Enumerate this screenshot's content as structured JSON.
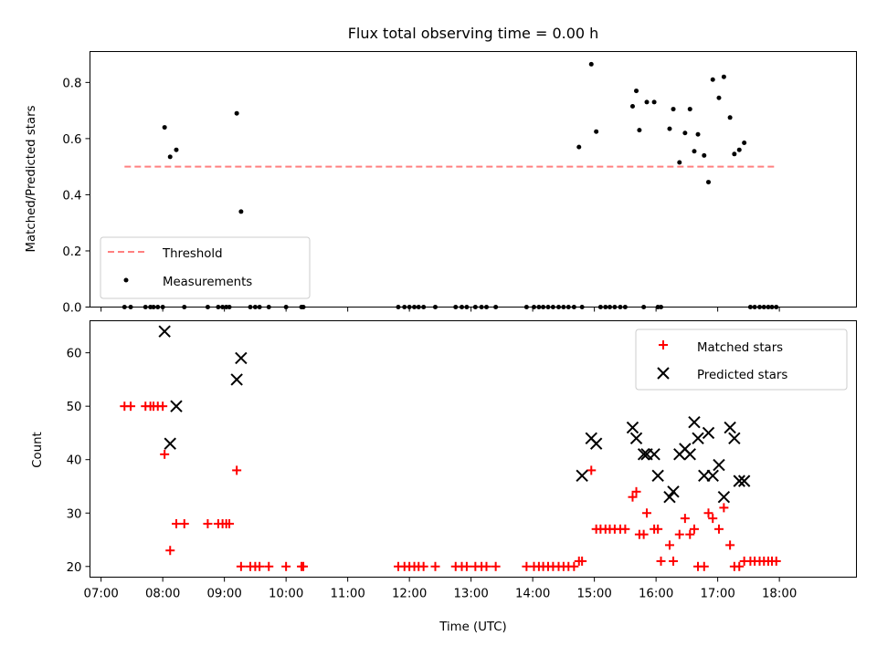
{
  "chart_data": [
    {
      "type": "scatter",
      "title": "Flux total observing time = 0.00 h",
      "xlabel": "",
      "ylabel": "Matched/Predicted stars",
      "ylim": [
        0,
        0.91
      ],
      "yticks": [
        0.0,
        0.2,
        0.4,
        0.6,
        0.8
      ],
      "ytick_labels": [
        "0.0",
        "0.2",
        "0.4",
        "0.6",
        "0.8"
      ],
      "xlim": [
        6.82,
        19.25
      ],
      "grid": false,
      "legend_position": "lower-left",
      "threshold": {
        "name": "Threshold",
        "value": 0.5,
        "x_range": [
          7.38,
          17.92
        ],
        "color": "#ff8080"
      },
      "series": [
        {
          "name": "Measurements",
          "color": "#000000",
          "x": [
            7.38,
            7.48,
            7.72,
            7.8,
            7.85,
            7.92,
            8.0,
            8.03,
            8.12,
            8.22,
            8.35,
            8.73,
            8.9,
            8.97,
            9.03,
            9.08,
            9.2,
            9.27,
            9.42,
            9.5,
            9.57,
            9.72,
            10.0,
            10.25,
            10.28,
            11.82,
            11.92,
            12.0,
            12.08,
            12.15,
            12.23,
            12.42,
            12.75,
            12.85,
            12.93,
            13.07,
            13.17,
            13.25,
            13.4,
            13.9,
            14.02,
            14.1,
            14.17,
            14.25,
            14.33,
            14.42,
            14.5,
            14.58,
            14.67,
            14.75,
            14.8,
            14.95,
            15.03,
            15.1,
            15.18,
            15.25,
            15.33,
            15.42,
            15.5,
            15.62,
            15.68,
            15.73,
            15.8,
            15.85,
            15.97,
            16.03,
            16.08,
            16.22,
            16.28,
            16.38,
            16.47,
            16.55,
            16.62,
            16.68,
            16.78,
            16.85,
            16.92,
            17.02,
            17.1,
            17.2,
            17.27,
            17.35,
            17.43,
            17.53,
            17.6,
            17.68,
            17.75,
            17.82,
            17.88,
            17.95
          ],
          "y": [
            0,
            0,
            0,
            0,
            0,
            0,
            0,
            0.64,
            0.535,
            0.56,
            0,
            0,
            0,
            0,
            0,
            0,
            0.69,
            0.34,
            0,
            0,
            0,
            0,
            0,
            0,
            0,
            0,
            0,
            0,
            0,
            0,
            0,
            0,
            0,
            0,
            0,
            0,
            0,
            0,
            0,
            0,
            0,
            0,
            0,
            0,
            0,
            0,
            0,
            0,
            0,
            0.57,
            0,
            0.865,
            0.625,
            0,
            0,
            0,
            0,
            0,
            0,
            0.715,
            0.77,
            0.63,
            0,
            0.73,
            0.73,
            0,
            0,
            0.635,
            0.705,
            0.515,
            0.62,
            0.705,
            0.555,
            0.615,
            0.54,
            0.445,
            0.81,
            0.745,
            0.82,
            0.675,
            0.545,
            0.56,
            0.585,
            0,
            0,
            0,
            0,
            0,
            0,
            0
          ]
        }
      ]
    },
    {
      "type": "scatter",
      "title": "",
      "xlabel": "Time (UTC)",
      "ylabel": "Count",
      "ylim": [
        18,
        66
      ],
      "yticks": [
        20,
        30,
        40,
        50,
        60
      ],
      "ytick_labels": [
        "20",
        "30",
        "40",
        "50",
        "60"
      ],
      "xlim": [
        6.82,
        19.25
      ],
      "xticks": [
        7,
        8,
        9,
        10,
        11,
        12,
        13,
        14,
        15,
        16,
        17,
        18
      ],
      "xtick_labels": [
        "07:00",
        "08:00",
        "09:00",
        "10:00",
        "11:00",
        "12:00",
        "13:00",
        "14:00",
        "15:00",
        "16:00",
        "17:00",
        "18:00"
      ],
      "grid": false,
      "legend_position": "top-right",
      "series": [
        {
          "name": "Matched stars",
          "color": "#ff0000",
          "marker": "plus",
          "x": [
            7.38,
            7.48,
            7.72,
            7.8,
            7.85,
            7.92,
            8.0,
            8.03,
            8.12,
            8.22,
            8.35,
            8.73,
            8.9,
            8.97,
            9.03,
            9.08,
            9.2,
            9.27,
            9.42,
            9.5,
            9.57,
            9.72,
            10.0,
            10.25,
            10.28,
            11.82,
            11.92,
            12.0,
            12.08,
            12.15,
            12.23,
            12.42,
            12.75,
            12.85,
            12.93,
            13.07,
            13.17,
            13.25,
            13.4,
            13.9,
            14.02,
            14.1,
            14.17,
            14.25,
            14.33,
            14.42,
            14.5,
            14.58,
            14.67,
            14.75,
            14.8,
            14.95,
            15.03,
            15.1,
            15.18,
            15.25,
            15.33,
            15.42,
            15.5,
            15.62,
            15.68,
            15.73,
            15.8,
            15.85,
            15.97,
            16.03,
            16.08,
            16.22,
            16.28,
            16.38,
            16.47,
            16.55,
            16.62,
            16.68,
            16.78,
            16.85,
            16.92,
            17.02,
            17.1,
            17.2,
            17.27,
            17.35,
            17.43,
            17.53,
            17.6,
            17.68,
            17.75,
            17.82,
            17.88,
            17.95
          ],
          "y": [
            50,
            50,
            50,
            50,
            50,
            50,
            50,
            41,
            23,
            28,
            28,
            28,
            28,
            28,
            28,
            28,
            38,
            20,
            20,
            20,
            20,
            20,
            20,
            20,
            20,
            20,
            20,
            20,
            20,
            20,
            20,
            20,
            20,
            20,
            20,
            20,
            20,
            20,
            20,
            20,
            20,
            20,
            20,
            20,
            20,
            20,
            20,
            20,
            20,
            21,
            21,
            38,
            27,
            27,
            27,
            27,
            27,
            27,
            27,
            33,
            34,
            26,
            26,
            30,
            27,
            27,
            21,
            24,
            21,
            26,
            29,
            26,
            27,
            20,
            20,
            30,
            29,
            27,
            31,
            24,
            20,
            20,
            21,
            21,
            21,
            21,
            21,
            21,
            21,
            21
          ]
        },
        {
          "name": "Predicted stars",
          "color": "#000000",
          "marker": "x",
          "x": [
            8.03,
            8.12,
            8.22,
            9.2,
            9.27,
            14.8,
            14.95,
            15.03,
            15.62,
            15.68,
            15.8,
            15.85,
            15.97,
            16.03,
            16.22,
            16.28,
            16.38,
            16.47,
            16.55,
            16.62,
            16.68,
            16.78,
            16.85,
            16.92,
            17.02,
            17.1,
            17.2,
            17.27,
            17.35,
            17.43
          ],
          "y": [
            64,
            43,
            50,
            55,
            59,
            37,
            44,
            43,
            46,
            44,
            41,
            41,
            41,
            37,
            33,
            34,
            41,
            42,
            41,
            47,
            44,
            37,
            45,
            37,
            39,
            33,
            46,
            44,
            36,
            36
          ]
        }
      ]
    }
  ]
}
